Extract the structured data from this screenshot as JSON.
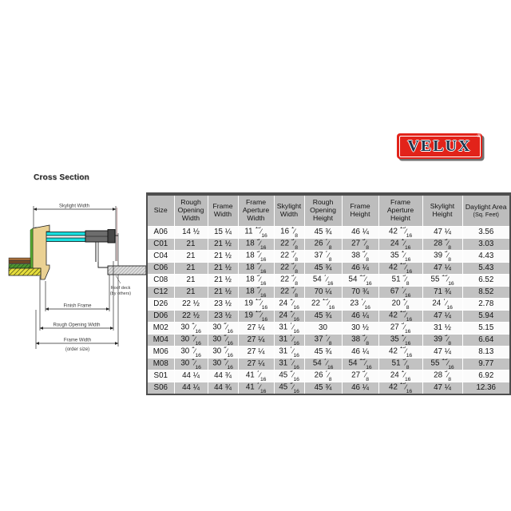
{
  "cross_section": {
    "title": "Cross Section",
    "labels": {
      "skylight_width": "Skylight Width",
      "finish_frame": "Finish Frame",
      "rough_opening_width": "Rough Opening Width",
      "frame_width": "Frame Width",
      "order_size": "(order size)",
      "deck_note_1": "Roof deck",
      "deck_note_2": "(by others)"
    }
  },
  "logo": {
    "brand": "VELUX",
    "registered": "®",
    "background": "#E2231A",
    "letter_color": "#20374E"
  },
  "size_table": {
    "headers": [
      {
        "label": "Size"
      },
      {
        "label": "Rough Opening Width"
      },
      {
        "label": "Frame Width"
      },
      {
        "label": "Frame Aperture Width"
      },
      {
        "label": "Skylight Width"
      },
      {
        "label": "Rough Opening Height"
      },
      {
        "label": "Frame Height"
      },
      {
        "label": "Frame Aperture Height"
      },
      {
        "label": "Skylight Height"
      },
      {
        "label": "Daylight Area",
        "sub": "(Sq. Feet)"
      }
    ],
    "rows": [
      [
        "A06",
        "14 ½",
        "15 ¼",
        "11 15/16",
        "16 1/8",
        "45 ¾",
        "46 ¼",
        "42 15/16",
        "47 ¼",
        "3.56"
      ],
      [
        "C01",
        "21",
        "21 ½",
        "18 3/16",
        "22 3/8",
        "26 7/8",
        "27 3/8",
        "24 1/16",
        "28 3/8",
        "3.03"
      ],
      [
        "C04",
        "21",
        "21 ½",
        "18 3/16",
        "22 3/8",
        "37 7/8",
        "38 3/8",
        "35 1/16",
        "39 3/8",
        "4.43"
      ],
      [
        "C06",
        "21",
        "21 ½",
        "18 3/16",
        "22 3/8",
        "45 ¾",
        "46 ¼",
        "42 15/16",
        "47 ¼",
        "5.43"
      ],
      [
        "C08",
        "21",
        "21 ½",
        "18 3/16",
        "22 3/8",
        "54 7/16",
        "54 15/16",
        "51 5/8",
        "55 15/16",
        "6.52"
      ],
      [
        "C12",
        "21",
        "21 ½",
        "18 3/16",
        "22 3/8",
        "70 ¼",
        "70 ¾",
        "67 7/16",
        "71 ¾",
        "8.52"
      ],
      [
        "D26",
        "22 ½",
        "23 ½",
        "19 15/16",
        "24 1/16",
        "22 15/16",
        "23 7/16",
        "20 1/8",
        "24 7/16",
        "2.78"
      ],
      [
        "D06",
        "22 ½",
        "23 ½",
        "19 15/16",
        "24 1/16",
        "45 ¾",
        "46 ¼",
        "42 15/16",
        "47 ¼",
        "5.94"
      ],
      [
        "M02",
        "30 1/16",
        "30 9/16",
        "27 ¼",
        "31 7/16",
        "30",
        "30 ½",
        "27 3/16",
        "31 ½",
        "5.15"
      ],
      [
        "M04",
        "30 1/16",
        "30 9/16",
        "27 ¼",
        "31 7/16",
        "37 7/8",
        "38 3/8",
        "35 1/16",
        "39 3/8",
        "6.64"
      ],
      [
        "M06",
        "30 1/16",
        "30 9/16",
        "27 ¼",
        "31 7/16",
        "45 ¾",
        "46 ¼",
        "42 15/16",
        "47 ¼",
        "8.13"
      ],
      [
        "M08",
        "30 1/16",
        "30 9/16",
        "27 ¼",
        "31 7/16",
        "54 7/16",
        "54 15/16",
        "51 5/8",
        "55 15/16",
        "9.77"
      ],
      [
        "S01",
        "44 ¼",
        "44 ¾",
        "41 7/16",
        "45 9/16",
        "26 7/8",
        "27 3/8",
        "24 1/16",
        "28 3/8",
        "6.92"
      ],
      [
        "S06",
        "44 ¼",
        "44 ¾",
        "41 7/16",
        "45 9/16",
        "45 ¾",
        "46 ¼",
        "42 15/16",
        "47 ¼",
        "12.36"
      ]
    ]
  }
}
